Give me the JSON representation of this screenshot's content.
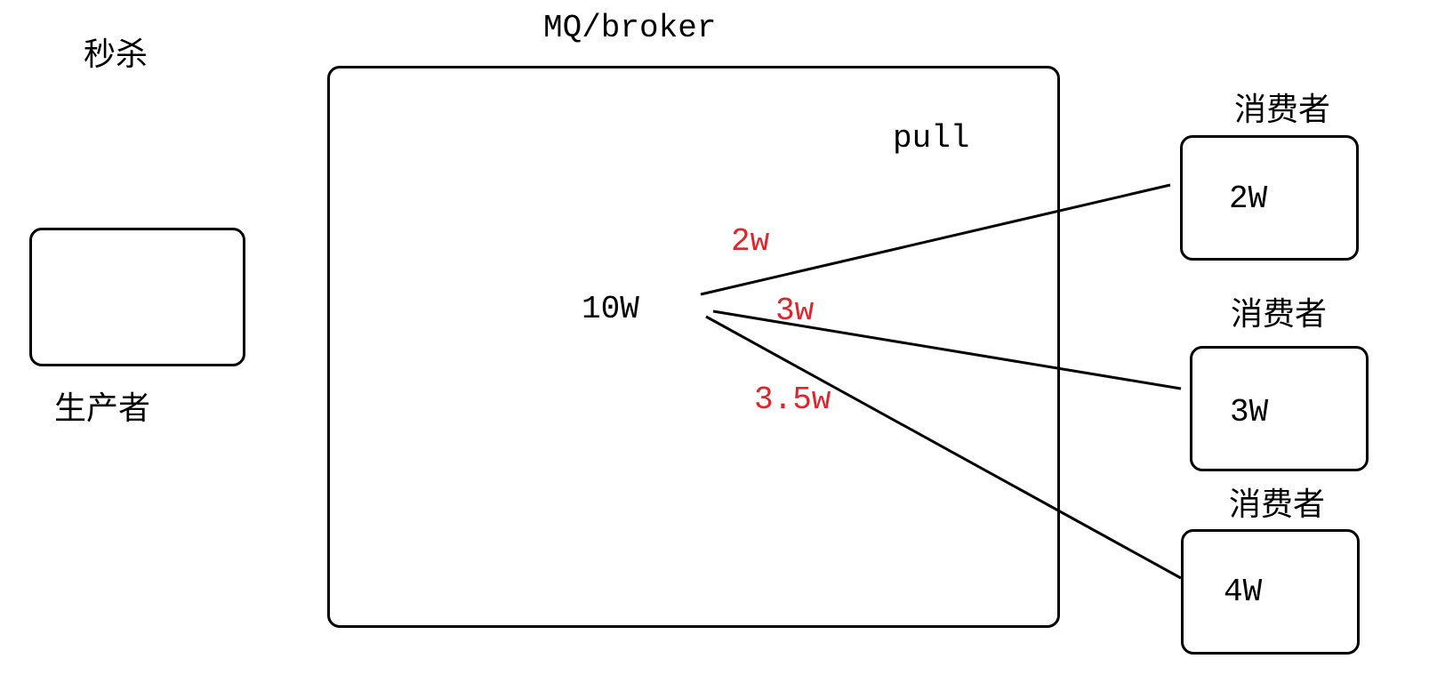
{
  "diagram": {
    "title_left": "秒杀",
    "producer": {
      "label": "生产者"
    },
    "broker": {
      "title": "MQ/broker",
      "mode": "pull",
      "total": "10W"
    },
    "consumers": [
      {
        "header": "消费者",
        "value": "2W",
        "edge_label": "2w"
      },
      {
        "header": "消费者",
        "value": "3W",
        "edge_label": "3w"
      },
      {
        "header": "消费者",
        "value": "4W",
        "edge_label": "3.5w"
      }
    ],
    "colors": {
      "stroke": "#000000",
      "edge_label": "#e0242a"
    }
  }
}
